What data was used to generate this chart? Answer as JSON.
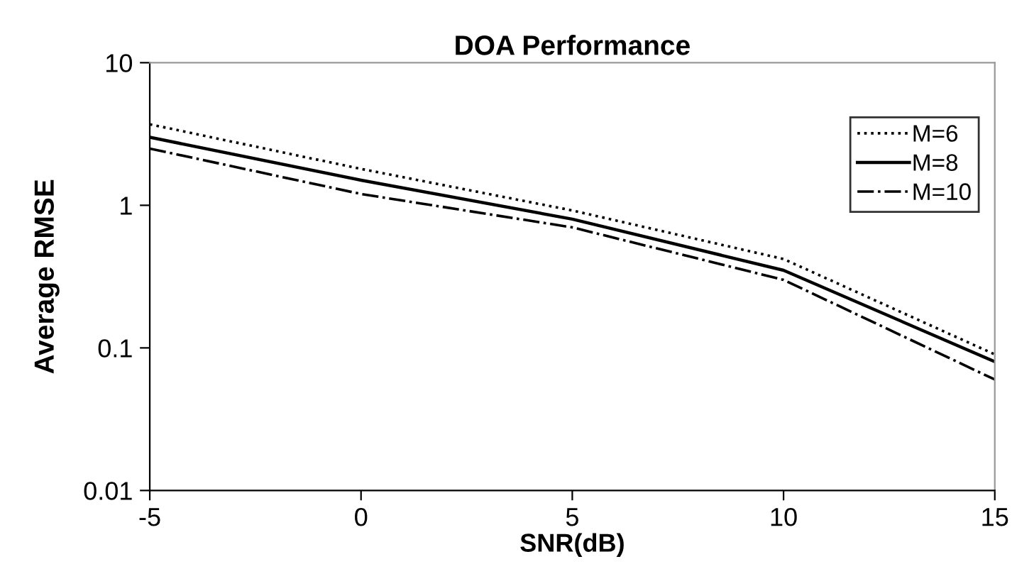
{
  "chart_data": {
    "type": "line",
    "title": "DOA Performance",
    "xlabel": "SNR(dB)",
    "ylabel": "Average RMSE",
    "x": [
      -5,
      0,
      5,
      10,
      15
    ],
    "series": [
      {
        "name": "M=6",
        "color": "#000000",
        "line_style": "dotted",
        "values": [
          3.7,
          1.8,
          0.92,
          0.42,
          0.09
        ]
      },
      {
        "name": "M=8",
        "color": "#000000",
        "line_style": "solid",
        "values": [
          3.0,
          1.5,
          0.8,
          0.35,
          0.08
        ]
      },
      {
        "name": "M=10",
        "color": "#000000",
        "line_style": "dashdot",
        "values": [
          2.5,
          1.2,
          0.7,
          0.3,
          0.06
        ]
      }
    ],
    "xlim": [
      -5,
      15
    ],
    "xticks": [
      -5,
      0,
      5,
      10,
      15
    ],
    "log": "y",
    "ylim": [
      0.01,
      10
    ],
    "yticks": [
      0.01,
      0.1,
      1,
      10
    ],
    "grid": false,
    "legend": "top right",
    "marker": "none"
  }
}
